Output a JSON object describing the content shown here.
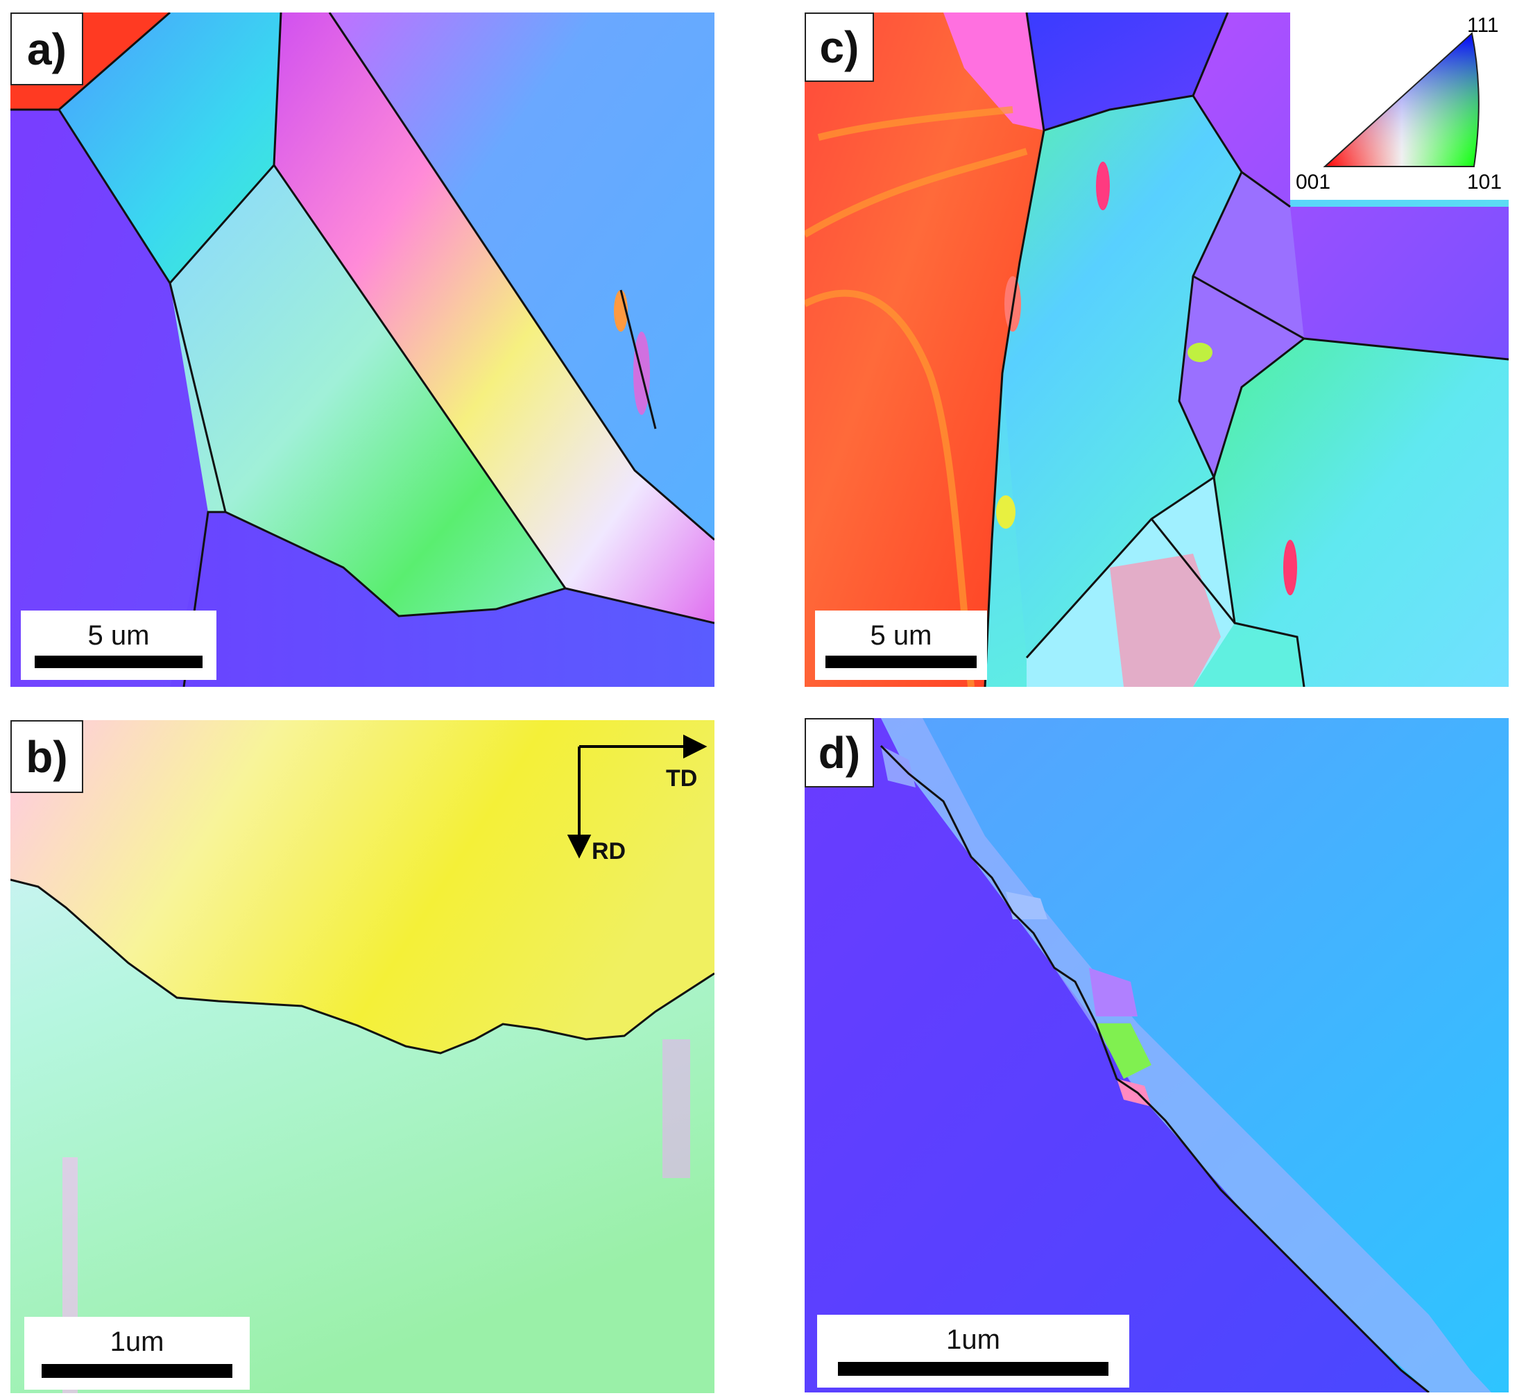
{
  "panels": {
    "a": {
      "label": "a)",
      "scale_text": "5 um"
    },
    "b": {
      "label": "b)",
      "scale_text": "1um",
      "axis_td": "TD",
      "axis_rd": "RD"
    },
    "c": {
      "label": "c)",
      "scale_text": "5 um",
      "legend": {
        "top": "111",
        "left": "001",
        "right": "101"
      }
    },
    "d": {
      "label": "d)",
      "scale_text": "1um"
    }
  },
  "colors": {
    "red": "#ff2a1a",
    "orange": "#ff8a2a",
    "yellow": "#f5f02a",
    "green": "#4cf04a",
    "cyan": "#3ff0e8",
    "light_blue": "#56a8ff",
    "blue": "#3a54ff",
    "violet": "#7a3cff",
    "magenta": "#e040f0",
    "pink": "#ff8ad8",
    "boundary": "#111111"
  }
}
